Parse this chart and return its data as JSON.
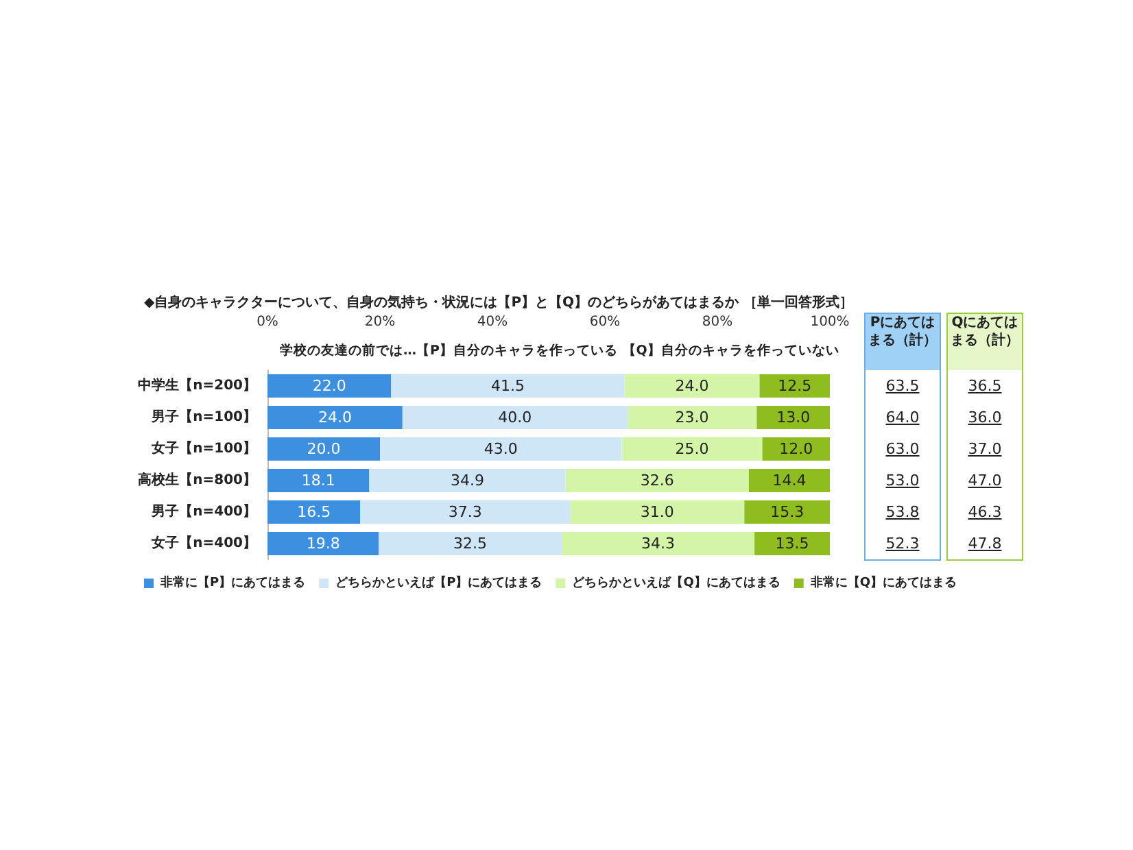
{
  "chart_data": [
    {
      "type": "bar",
      "orientation": "horizontal",
      "stacked": true,
      "title": "◆自身のキャラクターについて、自身の気持ち・状況には【P】と【Q】のどちらがあてはまるか ［単一回答形式］",
      "subtitle": "学校の友達の前では…【P】自分のキャラを作っている 【Q】自分のキャラを作っていない",
      "categories": [
        "中学生【n=200】",
        "男子【n=100】",
        "女子【n=100】",
        "高校生【n=800】",
        "男子【n=400】",
        "女子【n=400】"
      ],
      "xlim": [
        0,
        100
      ],
      "xticks": [
        {
          "value": 0,
          "label": "0%"
        },
        {
          "value": 20,
          "label": "20%"
        },
        {
          "value": 40,
          "label": "40%"
        },
        {
          "value": 60,
          "label": "60%"
        },
        {
          "value": 80,
          "label": "80%"
        },
        {
          "value": 100,
          "label": "100%"
        }
      ],
      "series": [
        {
          "name": "非常に【P】にあてはまる",
          "color": "#3d8fe0",
          "values": [
            22.0,
            24.0,
            20.0,
            18.1,
            16.5,
            19.8
          ],
          "value_labels": [
            "22.0",
            "24.0",
            "20.0",
            "18.1",
            "16.5",
            "19.8"
          ]
        },
        {
          "name": "どちらかといえば【P】にあてはまる",
          "color": "#cfe6f7",
          "values": [
            41.5,
            40.0,
            43.0,
            34.9,
            37.3,
            32.5
          ],
          "value_labels": [
            "41.5",
            "40.0",
            "43.0",
            "34.9",
            "37.3",
            "32.5"
          ]
        },
        {
          "name": "どちらかといえば【Q】にあてはまる",
          "color": "#d4f5a8",
          "values": [
            24.0,
            23.0,
            25.0,
            32.6,
            31.0,
            34.3
          ],
          "value_labels": [
            "24.0",
            "23.0",
            "25.0",
            "32.6",
            "31.0",
            "34.3"
          ]
        },
        {
          "name": "非常に【Q】にあてはまる",
          "color": "#8fbc1e",
          "values": [
            12.5,
            13.0,
            12.0,
            14.4,
            15.3,
            13.5
          ],
          "value_labels": [
            "12.5",
            "13.0",
            "12.0",
            "14.4",
            "15.3",
            "13.5"
          ]
        }
      ],
      "legend": "bottom",
      "grid": false
    },
    {
      "type": "other",
      "title": "Pにあてはまる（計）",
      "color": "#9fd0f5",
      "value_labels": [
        "63.5",
        "64.0",
        "63.0",
        "53.0",
        "53.8",
        "52.3"
      ]
    },
    {
      "type": "other",
      "title": "Qにあてはまる（計）",
      "color": "#e5f7c8",
      "value_labels": [
        "36.5",
        "36.0",
        "37.0",
        "47.0",
        "46.3",
        "47.8"
      ]
    }
  ]
}
